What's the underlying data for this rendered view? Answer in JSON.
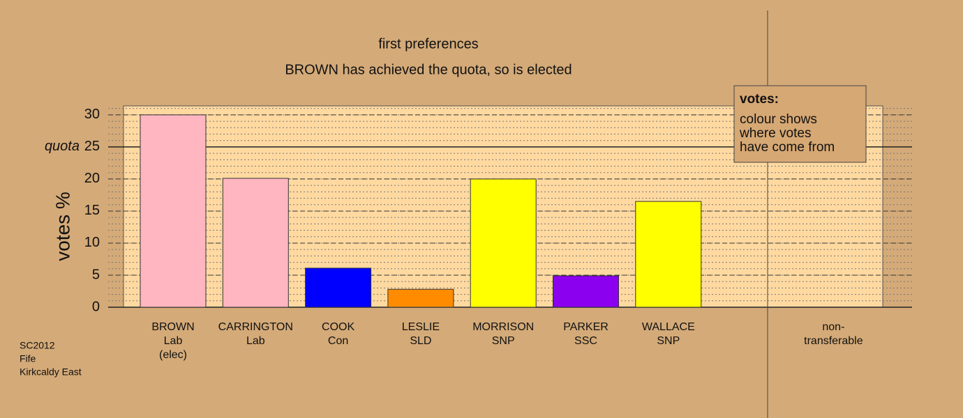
{
  "chart_data": {
    "type": "bar",
    "title": "first preferences",
    "subtitle": "BROWN has achieved the quota, so is elected",
    "y_label": "votes %",
    "categories": [
      [
        "BROWN",
        "Lab",
        "(elec)"
      ],
      [
        "CARRINGTON",
        "Lab"
      ],
      [
        "COOK",
        "Con"
      ],
      [
        "LESLIE",
        "SLD"
      ],
      [
        "MORRISON",
        "SNP"
      ],
      [
        "PARKER",
        "SSC"
      ],
      [
        "WALLACE",
        "SNP"
      ],
      null,
      [
        "non-",
        "transferable"
      ]
    ],
    "values": [
      30,
      20.1,
      6.1,
      2.8,
      20.0,
      4.9,
      16.5,
      null,
      null
    ],
    "colors": [
      "#ffb6c1",
      "#ffb6c1",
      "#0000ff",
      "#ff8c00",
      "#ffff00",
      "#8b00ee",
      "#ffff00",
      null,
      null
    ],
    "ylim": [
      0,
      31.4
    ],
    "yticks": [
      0,
      5,
      10,
      15,
      20,
      25,
      30
    ],
    "minor_grid_step": 1,
    "quota": 25,
    "quota_label": "quota",
    "legend": {
      "title": "votes:",
      "lines": [
        "colour shows",
        "where votes",
        "have come from"
      ]
    },
    "footer": [
      "SC2012",
      "Fife",
      "Kirkcaldy East"
    ]
  }
}
